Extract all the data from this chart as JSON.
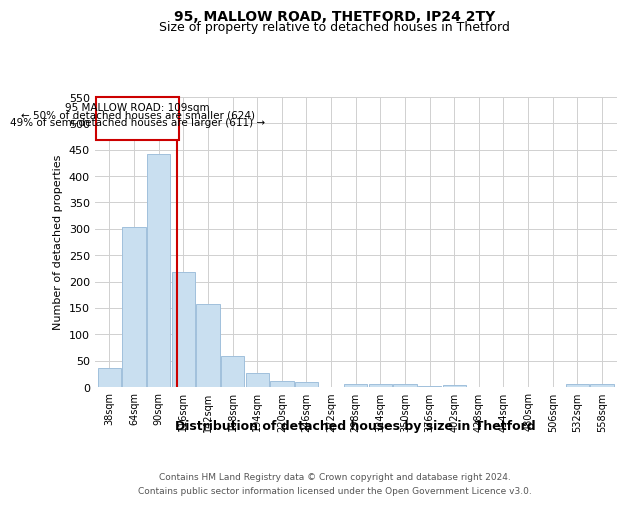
{
  "title1": "95, MALLOW ROAD, THETFORD, IP24 2TY",
  "title2": "Size of property relative to detached houses in Thetford",
  "xlabel": "Distribution of detached houses by size in Thetford",
  "ylabel": "Number of detached properties",
  "bin_labels": [
    "38sqm",
    "64sqm",
    "90sqm",
    "116sqm",
    "142sqm",
    "168sqm",
    "194sqm",
    "220sqm",
    "246sqm",
    "272sqm",
    "298sqm",
    "324sqm",
    "350sqm",
    "376sqm",
    "402sqm",
    "428sqm",
    "454sqm",
    "480sqm",
    "506sqm",
    "532sqm",
    "558sqm"
  ],
  "bar_heights": [
    36,
    303,
    442,
    218,
    157,
    59,
    26,
    12,
    9,
    0,
    5,
    5,
    5,
    2,
    4,
    0,
    0,
    0,
    0,
    5,
    5
  ],
  "bar_color": "#c9dff0",
  "bar_edge_color": "#a0c0dc",
  "property_line_label": "95 MALLOW ROAD: 109sqm",
  "annotation_line2": "← 50% of detached houses are smaller (624)",
  "annotation_line3": "49% of semi-detached houses are larger (611) →",
  "vline_color": "#cc0000",
  "annotation_box_edge": "#cc0000",
  "footnote1": "Contains HM Land Registry data © Crown copyright and database right 2024.",
  "footnote2": "Contains public sector information licensed under the Open Government Licence v3.0.",
  "ylim": [
    0,
    550
  ],
  "grid_color": "#d0d0d0",
  "background_color": "#ffffff"
}
